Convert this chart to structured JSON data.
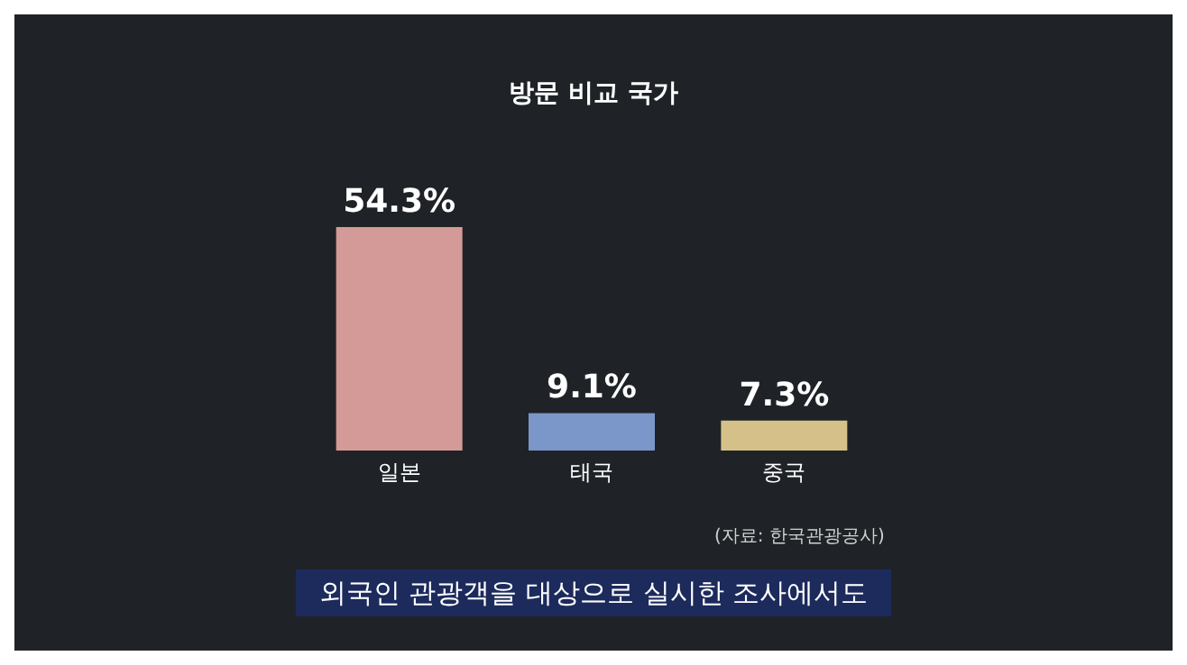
{
  "chart_data": {
    "type": "bar",
    "title": "방문 비교 국가",
    "categories": [
      "일본",
      "태국",
      "중국"
    ],
    "values": [
      54.3,
      9.1,
      7.3
    ],
    "colors": [
      "#d49a98",
      "#7b96c8",
      "#d6c08a"
    ],
    "value_labels": [
      "54.3%",
      "9.1%",
      "7.3%"
    ],
    "annotations": [
      "(자료: 한국관광공사)",
      "외국인 관광객을 대상으로 실시한 조사에서도"
    ]
  }
}
